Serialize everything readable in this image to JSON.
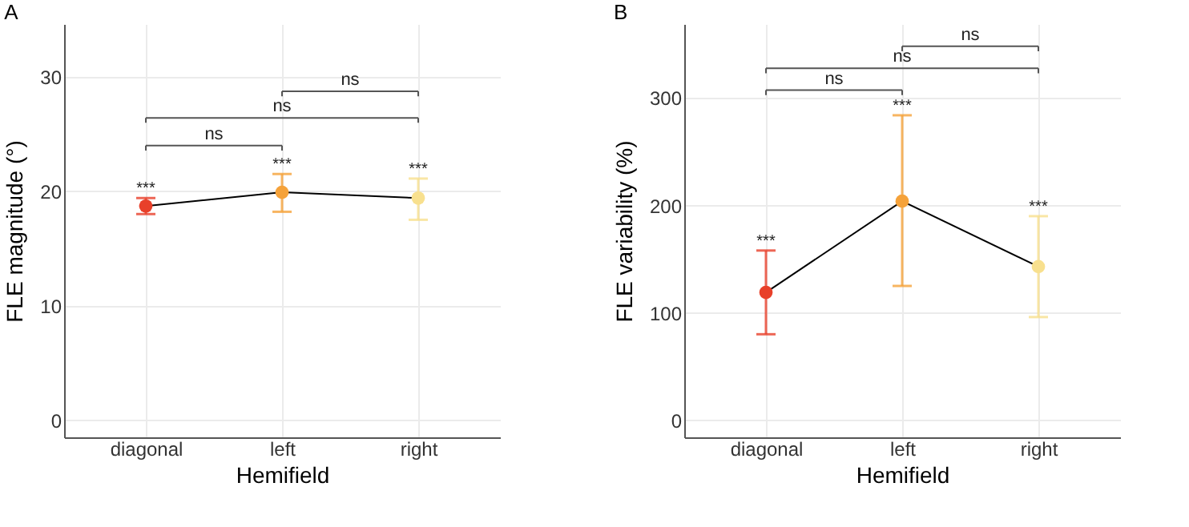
{
  "chart_data": [
    {
      "type": "line",
      "title": "A",
      "xlabel": "Hemifield",
      "ylabel": "FLE magnitude (°)",
      "categories": [
        "diagonal",
        "left",
        "right"
      ],
      "series": [
        {
          "color": "#000000",
          "values": [
            18.7,
            19.9,
            19.4
          ],
          "errors": [
            [
              18.0,
              19.4
            ],
            [
              18.2,
              21.5
            ],
            [
              17.5,
              21.1
            ]
          ]
        }
      ],
      "colors": [
        "#e8402a",
        "#f5a23a",
        "#f8e08e"
      ],
      "marker": "circle",
      "line_style": "solid",
      "grid": true,
      "ylim": [
        -1.5,
        34.6
      ],
      "yticks": [
        0,
        10,
        20,
        30
      ],
      "annotations": [
        "***",
        "***",
        "***",
        "ns",
        "ns",
        "ns"
      ]
    },
    {
      "type": "line",
      "title": "B",
      "xlabel": "Hemifield",
      "ylabel": "FLE variability (%)",
      "categories": [
        "diagonal",
        "left",
        "right"
      ],
      "series": [
        {
          "color": "#000000",
          "values": [
            119,
            204,
            143
          ],
          "errors": [
            [
              80,
              158
            ],
            [
              125,
              284
            ],
            [
              96,
              190
            ]
          ]
        }
      ],
      "colors": [
        "#e8402a",
        "#f5a23a",
        "#f8e08e"
      ],
      "marker": "circle",
      "line_style": "solid",
      "grid": true,
      "ylim": [
        -16,
        369
      ],
      "yticks": [
        0,
        100,
        200,
        300
      ],
      "annotations": [
        "***",
        "***",
        "***",
        "ns",
        "ns",
        "ns"
      ]
    }
  ]
}
